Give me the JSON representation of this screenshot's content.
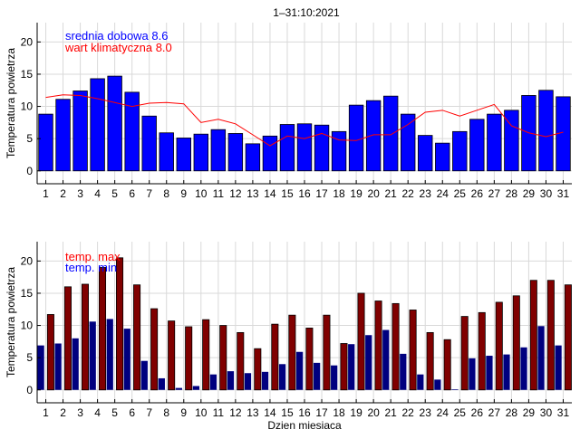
{
  "title": "1–31:10:2021",
  "colors": {
    "mean_bar": "#0000ff",
    "climate_line": "#ff0000",
    "max_bar": "#800000",
    "min_bar": "#00007f",
    "grid": "#d9d9d9",
    "legend_mean": "#0000ff",
    "legend_climate": "#ff0000",
    "legend_max": "#ff0000",
    "legend_min": "#0000ff"
  },
  "chart_data": [
    {
      "type": "bar",
      "title": "1–31:10:2021",
      "ylabel": "Temperatura powietrza",
      "xlabel": "",
      "ylim": [
        -2,
        23
      ],
      "yticks": [
        0,
        5,
        10,
        15,
        20
      ],
      "grid": true,
      "legend_position": "top-left",
      "categories": [
        "1",
        "2",
        "3",
        "4",
        "5",
        "6",
        "7",
        "8",
        "9",
        "10",
        "11",
        "12",
        "13",
        "14",
        "15",
        "16",
        "17",
        "18",
        "19",
        "20",
        "21",
        "22",
        "23",
        "24",
        "25",
        "26",
        "27",
        "28",
        "29",
        "30",
        "31"
      ],
      "series": [
        {
          "name": "srednia dobowa",
          "legend": "srednia dobowa 8.6",
          "kind": "bar",
          "values": [
            8.8,
            11.1,
            12.4,
            14.3,
            14.7,
            12.2,
            8.5,
            5.9,
            5.1,
            5.7,
            6.4,
            5.8,
            4.2,
            5.4,
            7.2,
            7.3,
            7.1,
            6.1,
            10.2,
            10.9,
            11.6,
            8.8,
            5.5,
            4.3,
            6.1,
            8.0,
            8.8,
            9.4,
            11.7,
            12.5,
            11.5
          ]
        },
        {
          "name": "wart klimatyczna",
          "legend": "wart klimatyczna 8.0",
          "kind": "line",
          "values": [
            11.4,
            11.8,
            11.7,
            11.2,
            10.6,
            10.0,
            10.5,
            10.6,
            10.4,
            7.5,
            8.0,
            7.3,
            5.6,
            3.9,
            5.4,
            5.0,
            5.8,
            4.8,
            4.7,
            5.6,
            5.6,
            7.2,
            9.1,
            9.4,
            8.5,
            9.4,
            10.3,
            7.0,
            5.9,
            5.3,
            6.0
          ]
        }
      ]
    },
    {
      "type": "bar",
      "title": "",
      "ylabel": "Temperatura powietrza",
      "xlabel": "Dzien miesiaca",
      "ylim": [
        -2,
        23
      ],
      "yticks": [
        0,
        5,
        10,
        15,
        20
      ],
      "grid": true,
      "legend_position": "top-left",
      "categories": [
        "1",
        "2",
        "3",
        "4",
        "5",
        "6",
        "7",
        "8",
        "9",
        "10",
        "11",
        "12",
        "13",
        "14",
        "15",
        "16",
        "17",
        "18",
        "19",
        "20",
        "21",
        "22",
        "23",
        "24",
        "25",
        "26",
        "27",
        "28",
        "29",
        "30",
        "31"
      ],
      "series": [
        {
          "name": "temp. max",
          "legend": "temp. max",
          "kind": "bar",
          "values": [
            11.7,
            16.0,
            16.4,
            19.0,
            20.5,
            16.3,
            12.6,
            10.7,
            9.8,
            10.9,
            10.0,
            8.9,
            6.4,
            10.2,
            11.6,
            9.6,
            11.6,
            7.2,
            15.0,
            13.8,
            13.4,
            12.4,
            8.9,
            7.8,
            11.4,
            12.0,
            13.6,
            14.6,
            17.0,
            17.0,
            16.3
          ]
        },
        {
          "name": "temp. min",
          "legend": "temp. min",
          "kind": "bar",
          "values": [
            6.9,
            7.2,
            8.0,
            10.6,
            11.0,
            9.5,
            4.5,
            1.8,
            0.3,
            0.6,
            2.4,
            2.9,
            2.6,
            2.8,
            4.0,
            5.9,
            4.2,
            3.8,
            7.1,
            8.5,
            9.3,
            5.6,
            2.4,
            1.6,
            0.1,
            4.9,
            5.3,
            5.5,
            6.6,
            9.9,
            6.9
          ]
        }
      ]
    }
  ]
}
